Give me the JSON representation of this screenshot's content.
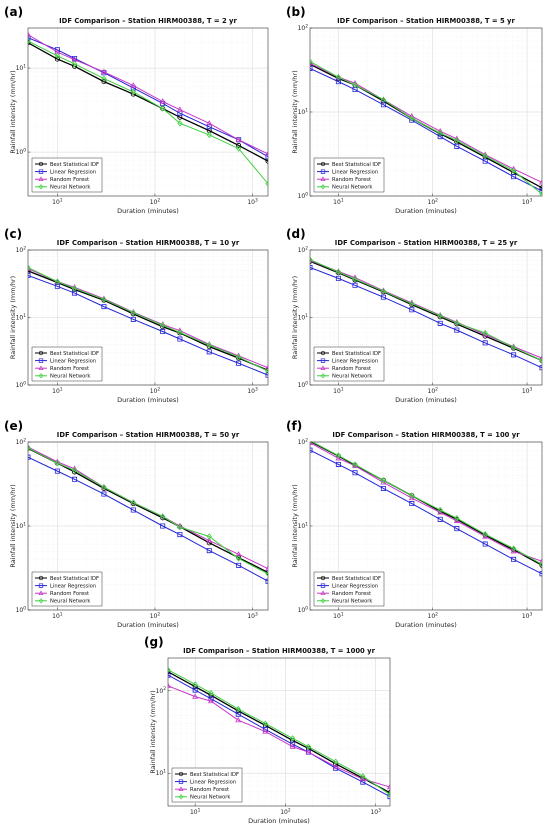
{
  "figure": {
    "legend_entries": [
      "Best Statistical IDF",
      "Linear Regression",
      "Random Forest",
      "Neural Network"
    ],
    "colors": {
      "Best Statistical IDF": "#000000",
      "Linear Regression": "#2323d6",
      "Random Forest": "#c837c8",
      "Neural Network": "#3fcf3f"
    }
  },
  "chart_data": [
    {
      "panel_label": "(a)",
      "type": "line",
      "title": "IDF Comparison – Station HIRM00388, T = 2 yr",
      "xlabel": "Duration (minutes)",
      "ylabel": "Rainfall intensity (mm/hr)",
      "xscale": "log",
      "yscale": "log",
      "xlim": [
        5,
        1440
      ],
      "ylim": [
        0.3,
        30
      ],
      "xticks": [
        10,
        100,
        1000
      ],
      "xtick_labels": [
        "10^1",
        "10^2",
        "10^3"
      ],
      "yticks": [
        1,
        10
      ],
      "ytick_labels": [
        "10^0",
        "10^1"
      ],
      "grid": true,
      "legend_position": "lower-left",
      "x": [
        5,
        10,
        15,
        30,
        60,
        120,
        180,
        360,
        720,
        1440
      ],
      "series": [
        {
          "name": "Best Statistical IDF",
          "marker": "circle",
          "values": [
            20,
            12.8,
            10.5,
            6.9,
            4.9,
            3.3,
            2.6,
            1.8,
            1.2,
            0.78
          ]
        },
        {
          "name": "Linear Regression",
          "marker": "square",
          "values": [
            23,
            16.5,
            13.0,
            8.8,
            5.8,
            3.8,
            2.9,
            2.0,
            1.4,
            0.88
          ]
        },
        {
          "name": "Random Forest",
          "marker": "triangle",
          "values": [
            25,
            15.5,
            12.6,
            9.0,
            6.2,
            4.0,
            3.2,
            2.2,
            1.4,
            0.95
          ]
        },
        {
          "name": "Neural Network",
          "marker": "diamond",
          "values": [
            21,
            14.0,
            11.2,
            7.5,
            5.2,
            3.3,
            2.2,
            1.6,
            1.1,
            0.42
          ]
        }
      ]
    },
    {
      "panel_label": "(b)",
      "type": "line",
      "title": "IDF Comparison – Station HIRM00388, T = 5 yr",
      "xlabel": "Duration (minutes)",
      "ylabel": "Rainfall intensity (mm/hr)",
      "xscale": "log",
      "yscale": "log",
      "xlim": [
        5,
        1440
      ],
      "ylim": [
        1,
        100
      ],
      "xticks": [
        10,
        100,
        1000
      ],
      "xtick_labels": [
        "10^1",
        "10^2",
        "10^3"
      ],
      "yticks": [
        1,
        10,
        100
      ],
      "ytick_labels": [
        "10^0",
        "10^1",
        "10^2"
      ],
      "grid": true,
      "legend_position": "lower-left",
      "x": [
        5,
        10,
        15,
        30,
        60,
        120,
        180,
        360,
        720,
        1440
      ],
      "series": [
        {
          "name": "Best Statistical IDF",
          "marker": "circle",
          "values": [
            37,
            25,
            21,
            13.5,
            8.4,
            5.5,
            4.4,
            2.9,
            1.9,
            1.25
          ]
        },
        {
          "name": "Linear Regression",
          "marker": "square",
          "values": [
            33,
            23,
            18.5,
            12.2,
            8.0,
            5.1,
            3.9,
            2.6,
            1.7,
            1.15
          ]
        },
        {
          "name": "Random Forest",
          "marker": "triangle",
          "values": [
            38,
            26,
            22,
            14,
            8.9,
            5.9,
            4.8,
            3.1,
            2.1,
            1.45
          ]
        },
        {
          "name": "Neural Network",
          "marker": "diamond",
          "values": [
            40,
            26,
            21,
            14,
            8.4,
            5.6,
            4.6,
            3.0,
            2.0,
            1.05
          ]
        }
      ]
    },
    {
      "panel_label": "(c)",
      "type": "line",
      "title": "IDF Comparison – Station HIRM00388, T = 10 yr",
      "xlabel": "Duration (minutes)",
      "ylabel": "Rainfall intensity (mm/hr)",
      "xscale": "log",
      "yscale": "log",
      "xlim": [
        5,
        1440
      ],
      "ylim": [
        1,
        100
      ],
      "xticks": [
        10,
        100,
        1000
      ],
      "xtick_labels": [
        "10^1",
        "10^2",
        "10^3"
      ],
      "yticks": [
        1,
        10,
        100
      ],
      "ytick_labels": [
        "10^0",
        "10^1",
        "10^2"
      ],
      "grid": true,
      "legend_position": "lower-left",
      "x": [
        5,
        10,
        15,
        30,
        60,
        120,
        180,
        360,
        720,
        1440
      ],
      "series": [
        {
          "name": "Best Statistical IDF",
          "marker": "circle",
          "values": [
            49,
            33,
            26,
            18,
            11.3,
            7.3,
            5.9,
            3.7,
            2.5,
            1.65
          ]
        },
        {
          "name": "Linear Regression",
          "marker": "square",
          "values": [
            42,
            29,
            23,
            14.5,
            9.4,
            6.2,
            4.8,
            3.1,
            2.1,
            1.4
          ]
        },
        {
          "name": "Random Forest",
          "marker": "triangle",
          "values": [
            53,
            34,
            28,
            19,
            12,
            7.9,
            6.4,
            4.0,
            2.7,
            1.8
          ]
        },
        {
          "name": "Neural Network",
          "marker": "diamond",
          "values": [
            55,
            34,
            27,
            18.5,
            11.8,
            7.7,
            6.0,
            3.9,
            2.6,
            1.6
          ]
        }
      ]
    },
    {
      "panel_label": "(d)",
      "type": "line",
      "title": "IDF Comparison – Station HIRM00388, T = 25 yr",
      "xlabel": "Duration (minutes)",
      "ylabel": "Rainfall intensity (mm/hr)",
      "xscale": "log",
      "yscale": "log",
      "xlim": [
        5,
        1440
      ],
      "ylim": [
        1,
        100
      ],
      "xticks": [
        10,
        100,
        1000
      ],
      "xtick_labels": [
        "10^1",
        "10^2",
        "10^3"
      ],
      "yticks": [
        1,
        10,
        100
      ],
      "ytick_labels": [
        "10^0",
        "10^1",
        "10^2"
      ],
      "grid": true,
      "legend_position": "lower-left",
      "x": [
        5,
        10,
        15,
        30,
        60,
        120,
        180,
        360,
        720,
        1440
      ],
      "series": [
        {
          "name": "Best Statistical IDF",
          "marker": "circle",
          "values": [
            68,
            46,
            36,
            24,
            15.5,
            10.2,
            8.0,
            5.3,
            3.5,
            2.3
          ]
        },
        {
          "name": "Linear Regression",
          "marker": "square",
          "values": [
            55,
            38,
            30,
            20,
            13,
            8.2,
            6.5,
            4.2,
            2.8,
            1.8
          ]
        },
        {
          "name": "Random Forest",
          "marker": "triangle",
          "values": [
            70,
            48,
            39,
            25,
            16.5,
            10.8,
            8.5,
            5.6,
            3.7,
            2.5
          ]
        },
        {
          "name": "Neural Network",
          "marker": "diamond",
          "values": [
            72,
            47,
            37,
            24.5,
            16,
            10.6,
            8.3,
            5.9,
            3.6,
            2.3
          ]
        }
      ]
    },
    {
      "panel_label": "(e)",
      "type": "line",
      "title": "IDF Comparison – Station HIRM00388, T = 50 yr",
      "xlabel": "Duration (minutes)",
      "ylabel": "Rainfall intensity (mm/hr)",
      "xscale": "log",
      "yscale": "log",
      "xlim": [
        5,
        1440
      ],
      "ylim": [
        1,
        100
      ],
      "xticks": [
        10,
        100,
        1000
      ],
      "xtick_labels": [
        "10^1",
        "10^2",
        "10^3"
      ],
      "yticks": [
        1,
        10,
        100
      ],
      "ytick_labels": [
        "10^0",
        "10^1",
        "10^2"
      ],
      "grid": true,
      "legend_position": "lower-left",
      "x": [
        5,
        10,
        15,
        30,
        60,
        120,
        180,
        360,
        720,
        1440
      ],
      "series": [
        {
          "name": "Best Statistical IDF",
          "marker": "circle",
          "values": [
            84,
            56,
            44,
            28,
            18.5,
            12.5,
            9.8,
            6.3,
            4.2,
            2.8
          ]
        },
        {
          "name": "Linear Regression",
          "marker": "square",
          "values": [
            66,
            45,
            36,
            24,
            15.5,
            10,
            7.9,
            5.1,
            3.4,
            2.2
          ]
        },
        {
          "name": "Random Forest",
          "marker": "triangle",
          "values": [
            87,
            58,
            48,
            29,
            19,
            13,
            10,
            6.7,
            4.6,
            3.1
          ]
        },
        {
          "name": "Neural Network",
          "marker": "diamond",
          "values": [
            85,
            56,
            46,
            29,
            19,
            13,
            9.7,
            7.5,
            4.1,
            2.7
          ]
        }
      ]
    },
    {
      "panel_label": "(f)",
      "type": "line",
      "title": "IDF Comparison – Station HIRM00388, T = 100 yr",
      "xlabel": "Duration (minutes)",
      "ylabel": "Rainfall intensity (mm/hr)",
      "xscale": "log",
      "yscale": "log",
      "xlim": [
        5,
        1440
      ],
      "ylim": [
        1,
        100
      ],
      "xticks": [
        10,
        100,
        1000
      ],
      "xtick_labels": [
        "10^1",
        "10^2",
        "10^3"
      ],
      "yticks": [
        1,
        10,
        100
      ],
      "ytick_labels": [
        "10^0",
        "10^1",
        "10^2"
      ],
      "grid": true,
      "legend_position": "lower-left",
      "x": [
        5,
        10,
        15,
        30,
        60,
        120,
        180,
        360,
        720,
        1440
      ],
      "series": [
        {
          "name": "Best Statistical IDF",
          "marker": "circle",
          "values": [
            102,
            68,
            53,
            35,
            23,
            15,
            12,
            7.8,
            5.2,
            3.4
          ]
        },
        {
          "name": "Linear Regression",
          "marker": "square",
          "values": [
            80,
            54,
            43,
            28,
            18.5,
            12,
            9.3,
            6.1,
            4.0,
            2.7
          ]
        },
        {
          "name": "Random Forest",
          "marker": "triangle",
          "values": [
            98,
            64,
            52,
            33,
            21.5,
            14.5,
            11.5,
            7.5,
            5.0,
            3.8
          ]
        },
        {
          "name": "Neural Network",
          "marker": "diamond",
          "values": [
            104,
            69,
            54,
            35,
            23,
            15.5,
            12.4,
            8.0,
            5.4,
            3.5
          ]
        }
      ]
    },
    {
      "panel_label": "(g)",
      "type": "line",
      "title": "IDF Comparison – Station HIRM00388, T = 1000 yr",
      "xlabel": "Duration (minutes)",
      "ylabel": "Rainfall intensity (mm/hr)",
      "xscale": "log",
      "yscale": "log",
      "xlim": [
        5,
        1440
      ],
      "ylim": [
        4,
        250
      ],
      "xticks": [
        10,
        100,
        1000
      ],
      "xtick_labels": [
        "10^1",
        "10^2",
        "10^3"
      ],
      "yticks": [
        10,
        100
      ],
      "ytick_labels": [
        "10^1",
        "10^2"
      ],
      "grid": true,
      "legend_position": "lower-left",
      "x": [
        5,
        10,
        15,
        30,
        60,
        120,
        180,
        360,
        720,
        1440
      ],
      "series": [
        {
          "name": "Best Statistical IDF",
          "marker": "circle",
          "values": [
            170,
            112,
            88,
            57,
            38,
            25,
            20,
            13,
            8.7,
            5.8
          ]
        },
        {
          "name": "Linear Regression",
          "marker": "square",
          "values": [
            155,
            102,
            80,
            52,
            34,
            22.5,
            18,
            11.5,
            7.8,
            5.2
          ]
        },
        {
          "name": "Random Forest",
          "marker": "triangle",
          "values": [
            115,
            85,
            75,
            44,
            32,
            21,
            18,
            12,
            8.5,
            6.8
          ]
        },
        {
          "name": "Neural Network",
          "marker": "diamond",
          "values": [
            180,
            120,
            94,
            60,
            40,
            26.5,
            21,
            13.8,
            9.2,
            5.5
          ]
        }
      ]
    }
  ]
}
